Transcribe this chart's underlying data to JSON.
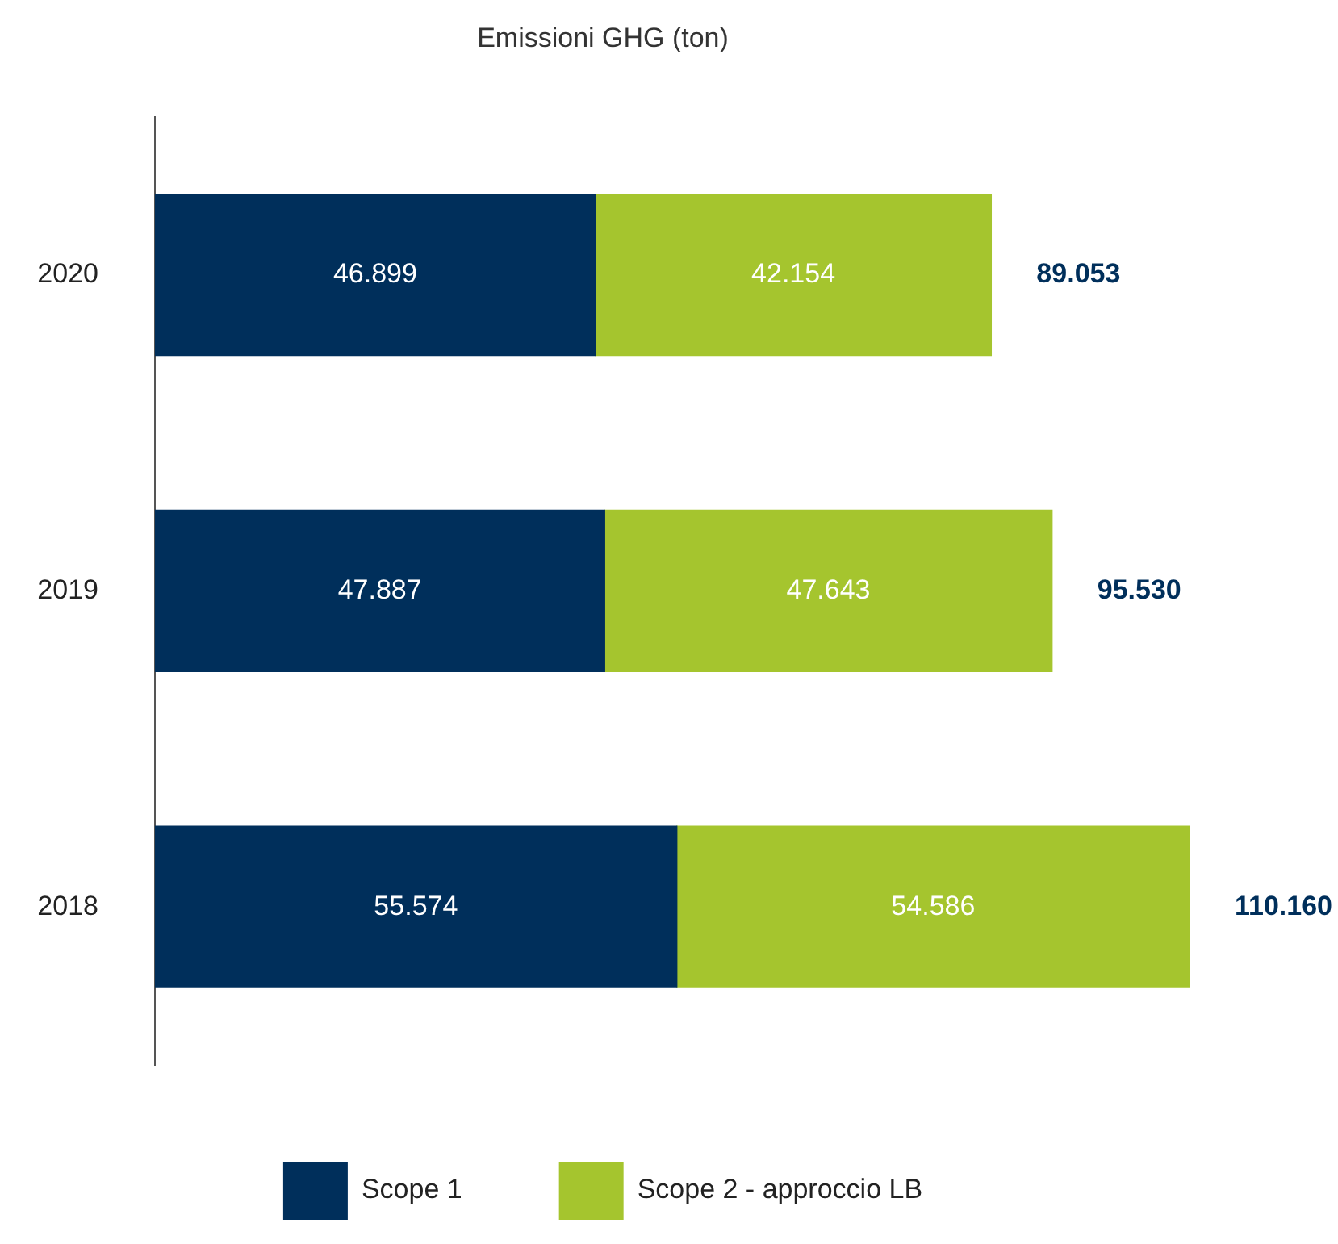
{
  "chart_data": {
    "type": "bar",
    "orientation": "horizontal",
    "stacked": true,
    "title": "Emissioni GHG (ton)",
    "categories": [
      "2020",
      "2019",
      "2018"
    ],
    "series": [
      {
        "name": "Scope 1",
        "color": "#002f5b",
        "values": [
          46899,
          47887,
          55574
        ],
        "value_labels": [
          "46.899",
          "47.887",
          "55.574"
        ]
      },
      {
        "name": "Scope 2 - approccio LB",
        "color": "#a5c52e",
        "values": [
          42154,
          47643,
          54586
        ],
        "value_labels": [
          "42.154",
          "47.643",
          "54.586"
        ]
      }
    ],
    "totals": [
      "89.053",
      "95.530",
      "110.160"
    ],
    "legend": "bottom"
  }
}
